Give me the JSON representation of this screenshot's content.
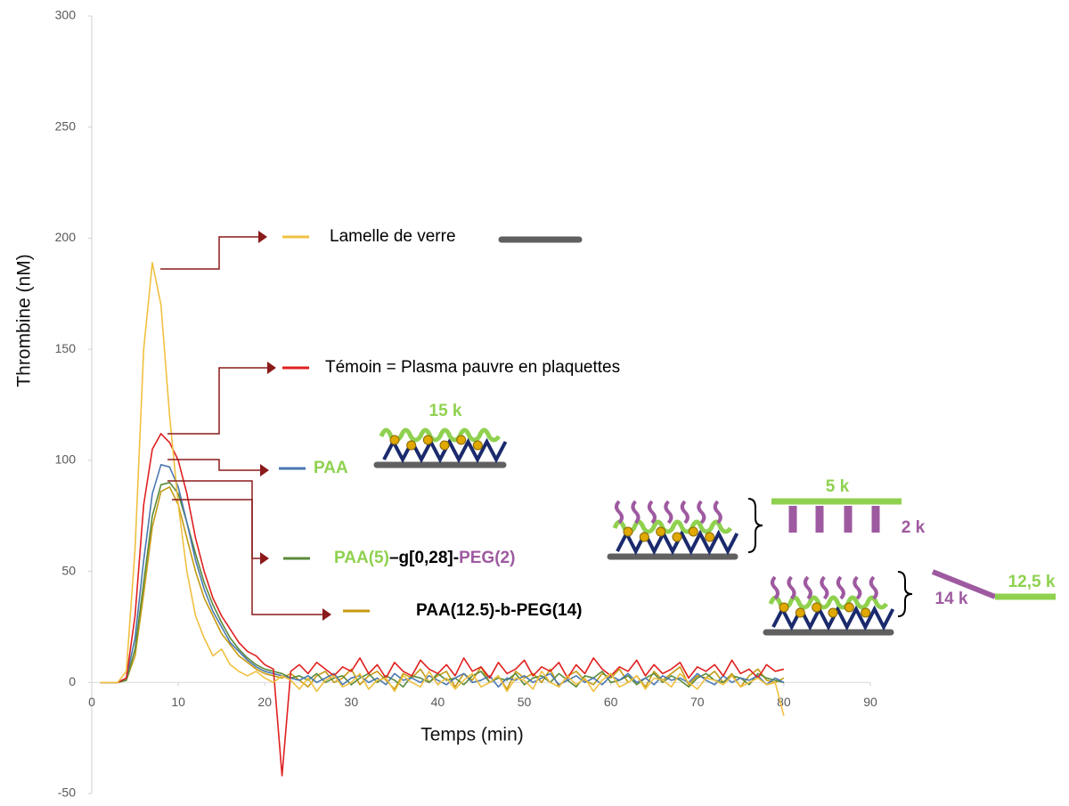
{
  "chart_data": {
    "type": "line",
    "x_label": "Temps (min)",
    "y_label": "Thrombine (nM)",
    "xlim": [
      0,
      90
    ],
    "ylim": [
      -50,
      300
    ],
    "xticks": [
      0,
      10,
      20,
      30,
      40,
      50,
      60,
      70,
      80,
      90
    ],
    "yticks": [
      -50,
      0,
      50,
      100,
      150,
      200,
      250,
      300
    ],
    "grid": false,
    "x": [
      1,
      2,
      3,
      4,
      5,
      6,
      7,
      8,
      9,
      10,
      11,
      12,
      13,
      14,
      15,
      16,
      17,
      18,
      19,
      20,
      21,
      22,
      23,
      24,
      25,
      26,
      27,
      28,
      29,
      30,
      31,
      32,
      33,
      34,
      35,
      36,
      37,
      38,
      39,
      40,
      41,
      42,
      43,
      44,
      45,
      46,
      47,
      48,
      49,
      50,
      51,
      52,
      53,
      54,
      55,
      56,
      57,
      58,
      59,
      60,
      61,
      62,
      63,
      64,
      65,
      66,
      67,
      68,
      69,
      70,
      71,
      72,
      73,
      74,
      75,
      76,
      77,
      78,
      79,
      80
    ],
    "series": [
      {
        "name": "PAA(12.5)-b-PEG(14)",
        "color": "#c49a12",
        "label_bold": true,
        "name_parts": null,
        "values": [
          0,
          0,
          0,
          1,
          12,
          40,
          70,
          86,
          88,
          80,
          65,
          50,
          38,
          30,
          22,
          17,
          12,
          9,
          6,
          4,
          3,
          2,
          4,
          1,
          -2,
          3,
          5,
          0,
          2,
          6,
          -1,
          3,
          5,
          1,
          -3,
          4,
          2,
          6,
          0,
          3,
          5,
          -2,
          4,
          1,
          7,
          0,
          3,
          -3,
          5,
          2,
          4,
          0,
          6,
          -2,
          3,
          5,
          1,
          -1,
          4,
          2,
          6,
          0,
          3,
          -2,
          5,
          1,
          4,
          7,
          -1,
          3,
          2,
          5,
          0,
          4,
          -2,
          3,
          6,
          1,
          0,
          2
        ]
      },
      {
        "name": [
          {
            "text": "PAA(5)",
            "color": "#8fd14f"
          },
          {
            "text": "–g[0,28]-",
            "color": "#000000"
          },
          {
            "text": "PEG(2)",
            "color": "#9e5aa0"
          }
        ],
        "color": "#5a8a3a",
        "label_bold": true,
        "values": [
          0,
          0,
          0,
          1,
          15,
          45,
          75,
          89,
          90,
          85,
          72,
          58,
          45,
          35,
          27,
          20,
          15,
          11,
          8,
          6,
          5,
          4,
          2,
          3,
          1,
          4,
          0,
          2,
          3,
          -1,
          2,
          4,
          0,
          3,
          1,
          -2,
          3,
          2,
          0,
          4,
          1,
          2,
          -1,
          3,
          5,
          0,
          2,
          1,
          4,
          -1,
          2,
          3,
          0,
          4,
          1,
          -2,
          3,
          2,
          5,
          0,
          1,
          3,
          -1,
          2,
          4,
          0,
          3,
          1,
          -2,
          2,
          4,
          1,
          0,
          3,
          2,
          -1,
          4,
          2,
          1,
          0
        ]
      },
      {
        "name": "PAA",
        "label_color": "#8fd14f",
        "color": "#4a78b0",
        "label_bold": true,
        "values": [
          0,
          0,
          0,
          2,
          20,
          55,
          85,
          98,
          97,
          88,
          72,
          55,
          42,
          32,
          25,
          18,
          14,
          10,
          7,
          5,
          4,
          3,
          2,
          1,
          3,
          0,
          2,
          4,
          -1,
          2,
          3,
          0,
          2,
          -1,
          4,
          1,
          2,
          0,
          3,
          1,
          -1,
          2,
          4,
          0,
          1,
          3,
          -2,
          2,
          1,
          3,
          0,
          2,
          4,
          -1,
          1,
          3,
          0,
          2,
          -1,
          3,
          1,
          4,
          0,
          2,
          -1,
          3,
          1,
          2,
          0,
          4,
          1,
          -1,
          3,
          0,
          2,
          1,
          3,
          -1,
          2,
          0
        ]
      },
      {
        "name": "Témoin = Plasma pauvre en plaquettes",
        "label_color": "#000000",
        "color": "#e02020",
        "label_bold": false,
        "values": [
          0,
          0,
          0,
          2,
          30,
          80,
          105,
          112,
          108,
          100,
          85,
          65,
          50,
          38,
          30,
          24,
          18,
          14,
          12,
          8,
          6,
          -42,
          5,
          8,
          4,
          9,
          6,
          3,
          7,
          5,
          11,
          4,
          8,
          2,
          9,
          5,
          3,
          10,
          6,
          4,
          8,
          3,
          11,
          5,
          7,
          2,
          9,
          4,
          6,
          10,
          3,
          7,
          5,
          9,
          2,
          8,
          4,
          11,
          6,
          3,
          7,
          5,
          10,
          3,
          8,
          4,
          6,
          9,
          2,
          7,
          5,
          8,
          3,
          10,
          4,
          6,
          2,
          8,
          5,
          6
        ]
      },
      {
        "name": "Lamelle de verre",
        "label_color": "#000000",
        "color": "#f0c040",
        "label_bold": false,
        "values": [
          0,
          0,
          0,
          5,
          60,
          150,
          189,
          170,
          120,
          80,
          50,
          30,
          20,
          12,
          15,
          8,
          5,
          3,
          5,
          2,
          0,
          3,
          1,
          -3,
          2,
          -4,
          1,
          3,
          -2,
          0,
          4,
          -3,
          1,
          2,
          -4,
          3,
          0,
          -2,
          5,
          -1,
          2,
          -3,
          1,
          4,
          -2,
          0,
          3,
          -4,
          2,
          1,
          -3,
          5,
          0,
          -2,
          3,
          -1,
          2,
          -4,
          1,
          4,
          -2,
          0,
          3,
          -3,
          2,
          1,
          -2,
          4,
          0,
          -3,
          2,
          1,
          -1,
          3,
          -2,
          0,
          2,
          -1,
          0,
          -15
        ]
      }
    ],
    "structure_labels": [
      "15 k",
      "5 k",
      "2 k",
      "14 k",
      "12,5 k"
    ]
  }
}
